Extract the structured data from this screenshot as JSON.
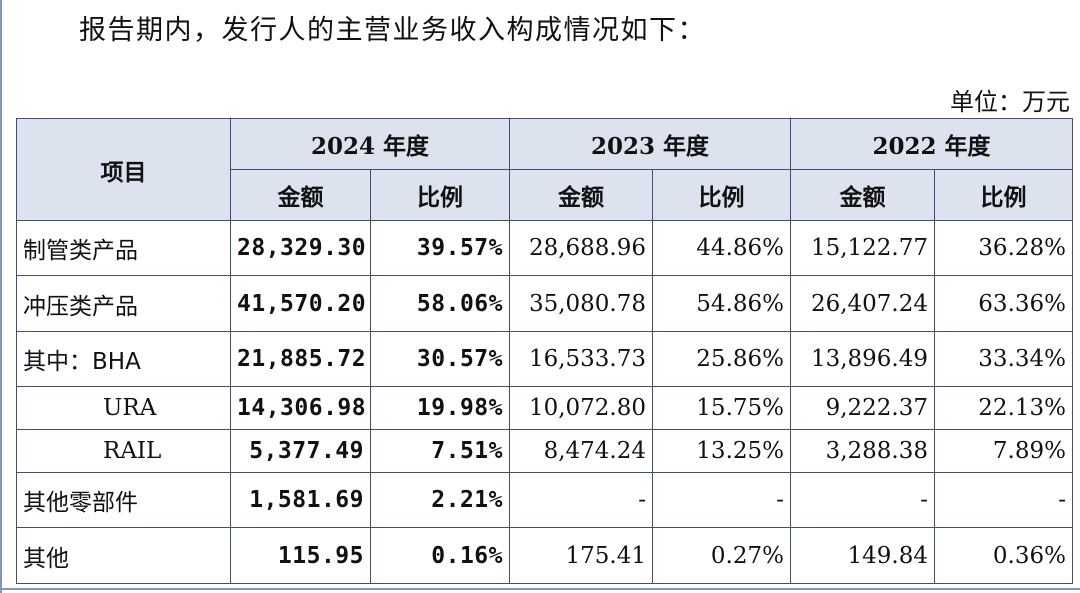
{
  "intro": "报告期内，发行人的主营业务收入构成情况如下：",
  "unit": "单位：万元",
  "table": {
    "item_header": "项目",
    "years": [
      "2024 年度",
      "2023 年度",
      "2022 年度"
    ],
    "sub_headers": [
      "金额",
      "比例",
      "金额",
      "比例",
      "金额",
      "比例"
    ],
    "rows": [
      {
        "name": "制管类产品",
        "indent": false,
        "cells": [
          "28,329.30",
          "39.57%",
          "28,688.96",
          "44.86%",
          "15,122.77",
          "36.28%"
        ]
      },
      {
        "name": "冲压类产品",
        "indent": false,
        "cells": [
          "41,570.20",
          "58.06%",
          "35,080.78",
          "54.86%",
          "26,407.24",
          "63.36%"
        ]
      },
      {
        "name": "其中：BHA",
        "indent": false,
        "cells": [
          "21,885.72",
          "30.57%",
          "16,533.73",
          "25.86%",
          "13,896.49",
          "33.34%"
        ]
      },
      {
        "name": "URA",
        "indent": true,
        "cells": [
          "14,306.98",
          "19.98%",
          "10,072.80",
          "15.75%",
          "9,222.37",
          "22.13%"
        ]
      },
      {
        "name": "RAIL",
        "indent": true,
        "cells": [
          "5,377.49",
          "7.51%",
          "8,474.24",
          "13.25%",
          "3,288.38",
          "7.89%"
        ]
      },
      {
        "name": "其他零部件",
        "indent": false,
        "cells": [
          "1,581.69",
          "2.21%",
          "-",
          "-",
          "-",
          "-"
        ]
      },
      {
        "name": "其他",
        "indent": false,
        "cells": [
          "115.95",
          "0.16%",
          "175.41",
          "0.27%",
          "149.84",
          "0.36%"
        ]
      }
    ]
  }
}
